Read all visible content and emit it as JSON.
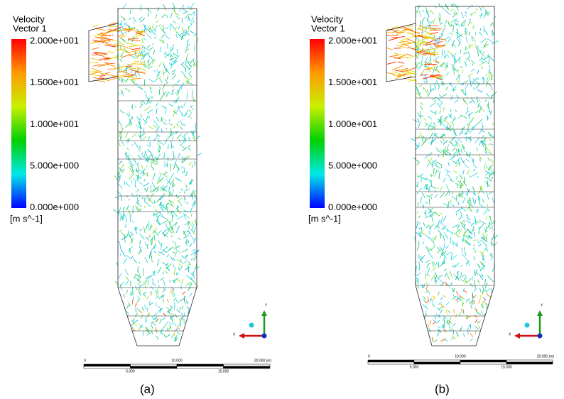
{
  "panels": [
    {
      "label": "(a)",
      "legend": {
        "title": "Velocity",
        "subtitle": "Vector 1",
        "ticks": [
          "2.000e+001",
          "1.500e+001",
          "1.000e+001",
          "5.000e+000",
          "0.000e+000"
        ],
        "unit": "[m s^-1]"
      },
      "scale": {
        "top": [
          "0",
          "10.000",
          "20.000 (m)"
        ],
        "bottom": [
          "5.000",
          "15.000"
        ]
      },
      "axes": {
        "y": "Y",
        "x": "X"
      }
    },
    {
      "label": "(b)",
      "legend": {
        "title": "Velocity",
        "subtitle": "Vector 1",
        "ticks": [
          "2.000e+001",
          "1.500e+001",
          "1.000e+001",
          "5.000e+000",
          "0.000e+000"
        ],
        "unit": "[m s^-1]"
      },
      "scale": {
        "top": [
          "0",
          "10.000",
          "20.000 (m)"
        ],
        "bottom": [
          "5.000",
          "15.000"
        ]
      },
      "axes": {
        "y": "Y",
        "x": "X"
      }
    }
  ]
}
